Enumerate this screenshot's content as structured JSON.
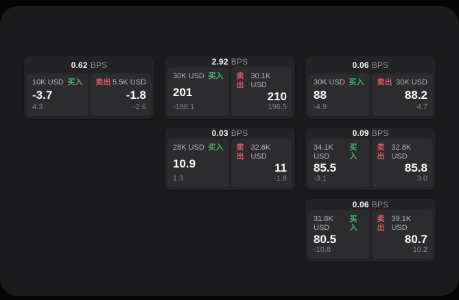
{
  "labels": {
    "bps_unit": "BPS",
    "buy": "买入",
    "sell": "卖出"
  },
  "colors": {
    "buy": "#4caf70",
    "sell": "#d6586a",
    "panel_background": "#1b1b1d",
    "card_background": "#232326",
    "tile_background": "#2c2c2f"
  },
  "cards": [
    {
      "bps": "0.62",
      "buy": {
        "amount": "10K USD",
        "price": "-3.7",
        "sub": "4.3"
      },
      "sell": {
        "amount": "5.5K USD",
        "price": "-1.8",
        "sub": "-2.6"
      }
    },
    {
      "bps": "2.92",
      "buy": {
        "amount": "30K USD",
        "price": "201",
        "sub": "-188.1"
      },
      "sell": {
        "amount": "30.1K USD",
        "price": "210",
        "sub": "196.5"
      }
    },
    {
      "bps": "0.06",
      "buy": {
        "amount": "30K USD",
        "price": "88",
        "sub": "-4.9"
      },
      "sell": {
        "amount": "30K USD",
        "price": "88.2",
        "sub": "4.7"
      }
    },
    {
      "bps": "0.03",
      "buy": {
        "amount": "28K USD",
        "price": "10.9",
        "sub": "1.3"
      },
      "sell": {
        "amount": "32.6K USD",
        "price": "11",
        "sub": "-1.8"
      }
    },
    {
      "bps": "0.09",
      "buy": {
        "amount": "34.1K USD",
        "price": "85.5",
        "sub": "-3.1"
      },
      "sell": {
        "amount": "32.8K USD",
        "price": "85.8",
        "sub": "3.0"
      }
    },
    {
      "bps": "0.06",
      "buy": {
        "amount": "31.8K USD",
        "price": "80.5",
        "sub": "-10.8"
      },
      "sell": {
        "amount": "39.1K USD",
        "price": "80.7",
        "sub": "10.2"
      }
    }
  ]
}
